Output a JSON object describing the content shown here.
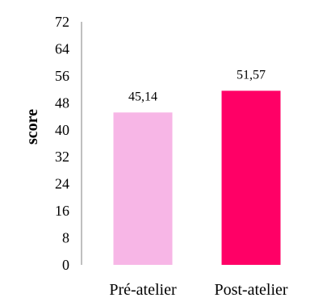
{
  "chart_data": {
    "type": "bar",
    "categories": [
      "Pré-atelier",
      "Post-atelier"
    ],
    "values": [
      45.14,
      51.57
    ],
    "value_labels": [
      "45,14",
      "51,57"
    ],
    "colors": [
      "#F7B6E6",
      "#FF0066"
    ],
    "ylabel": "score",
    "xlabel": "",
    "title": "",
    "ylim": [
      0,
      72
    ],
    "yticks": [
      0,
      8,
      16,
      24,
      32,
      40,
      48,
      56,
      64,
      72
    ],
    "grid": false,
    "legend": "none"
  }
}
